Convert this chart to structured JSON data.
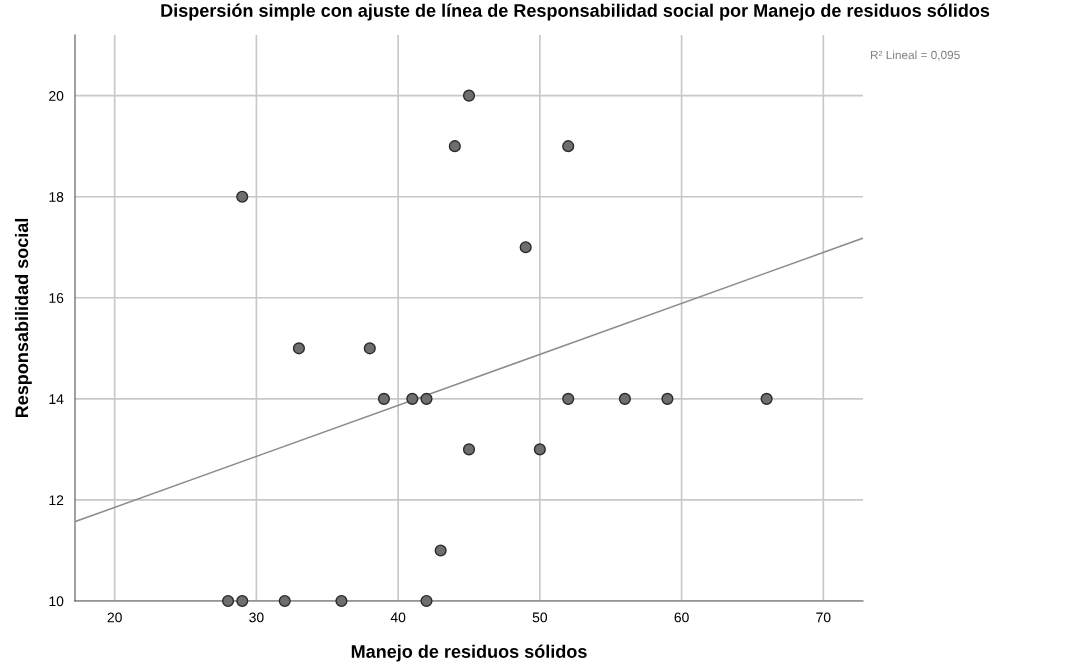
{
  "chart_data": {
    "type": "scatter",
    "title": "Dispersión simple con ajuste de línea de Responsabilidad social por Manejo de residuos sólidos",
    "xlabel": "Manejo de residuos sólidos",
    "ylabel": "Responsabilidad social",
    "x": [
      28,
      29,
      32,
      36,
      42,
      43,
      45,
      50,
      39,
      41,
      42,
      52,
      56,
      59,
      66,
      33,
      38,
      49,
      29,
      44,
      52,
      45
    ],
    "series": [
      {
        "color": "#6e6e6e",
        "values": [
          10,
          10,
          10,
          10,
          10,
          11,
          13,
          13,
          14,
          14,
          14,
          14,
          14,
          14,
          14,
          15,
          15,
          17,
          18,
          19,
          19,
          20
        ]
      },
      {
        "type": "line",
        "marker": "none",
        "color": "#8c8c8c",
        "x": [
          17.2,
          72.8
        ],
        "values": [
          11.57,
          17.18
        ]
      }
    ],
    "annotations": [
      "R² Lineal = 0,095"
    ],
    "xlim": [
      17.2,
      72.8
    ],
    "ylim": [
      10,
      21.2
    ],
    "xticks": [
      20,
      30,
      40,
      50,
      60,
      70
    ],
    "yticks": [
      10,
      12,
      14,
      16,
      18,
      20
    ],
    "grid": true,
    "marker": "circle"
  }
}
